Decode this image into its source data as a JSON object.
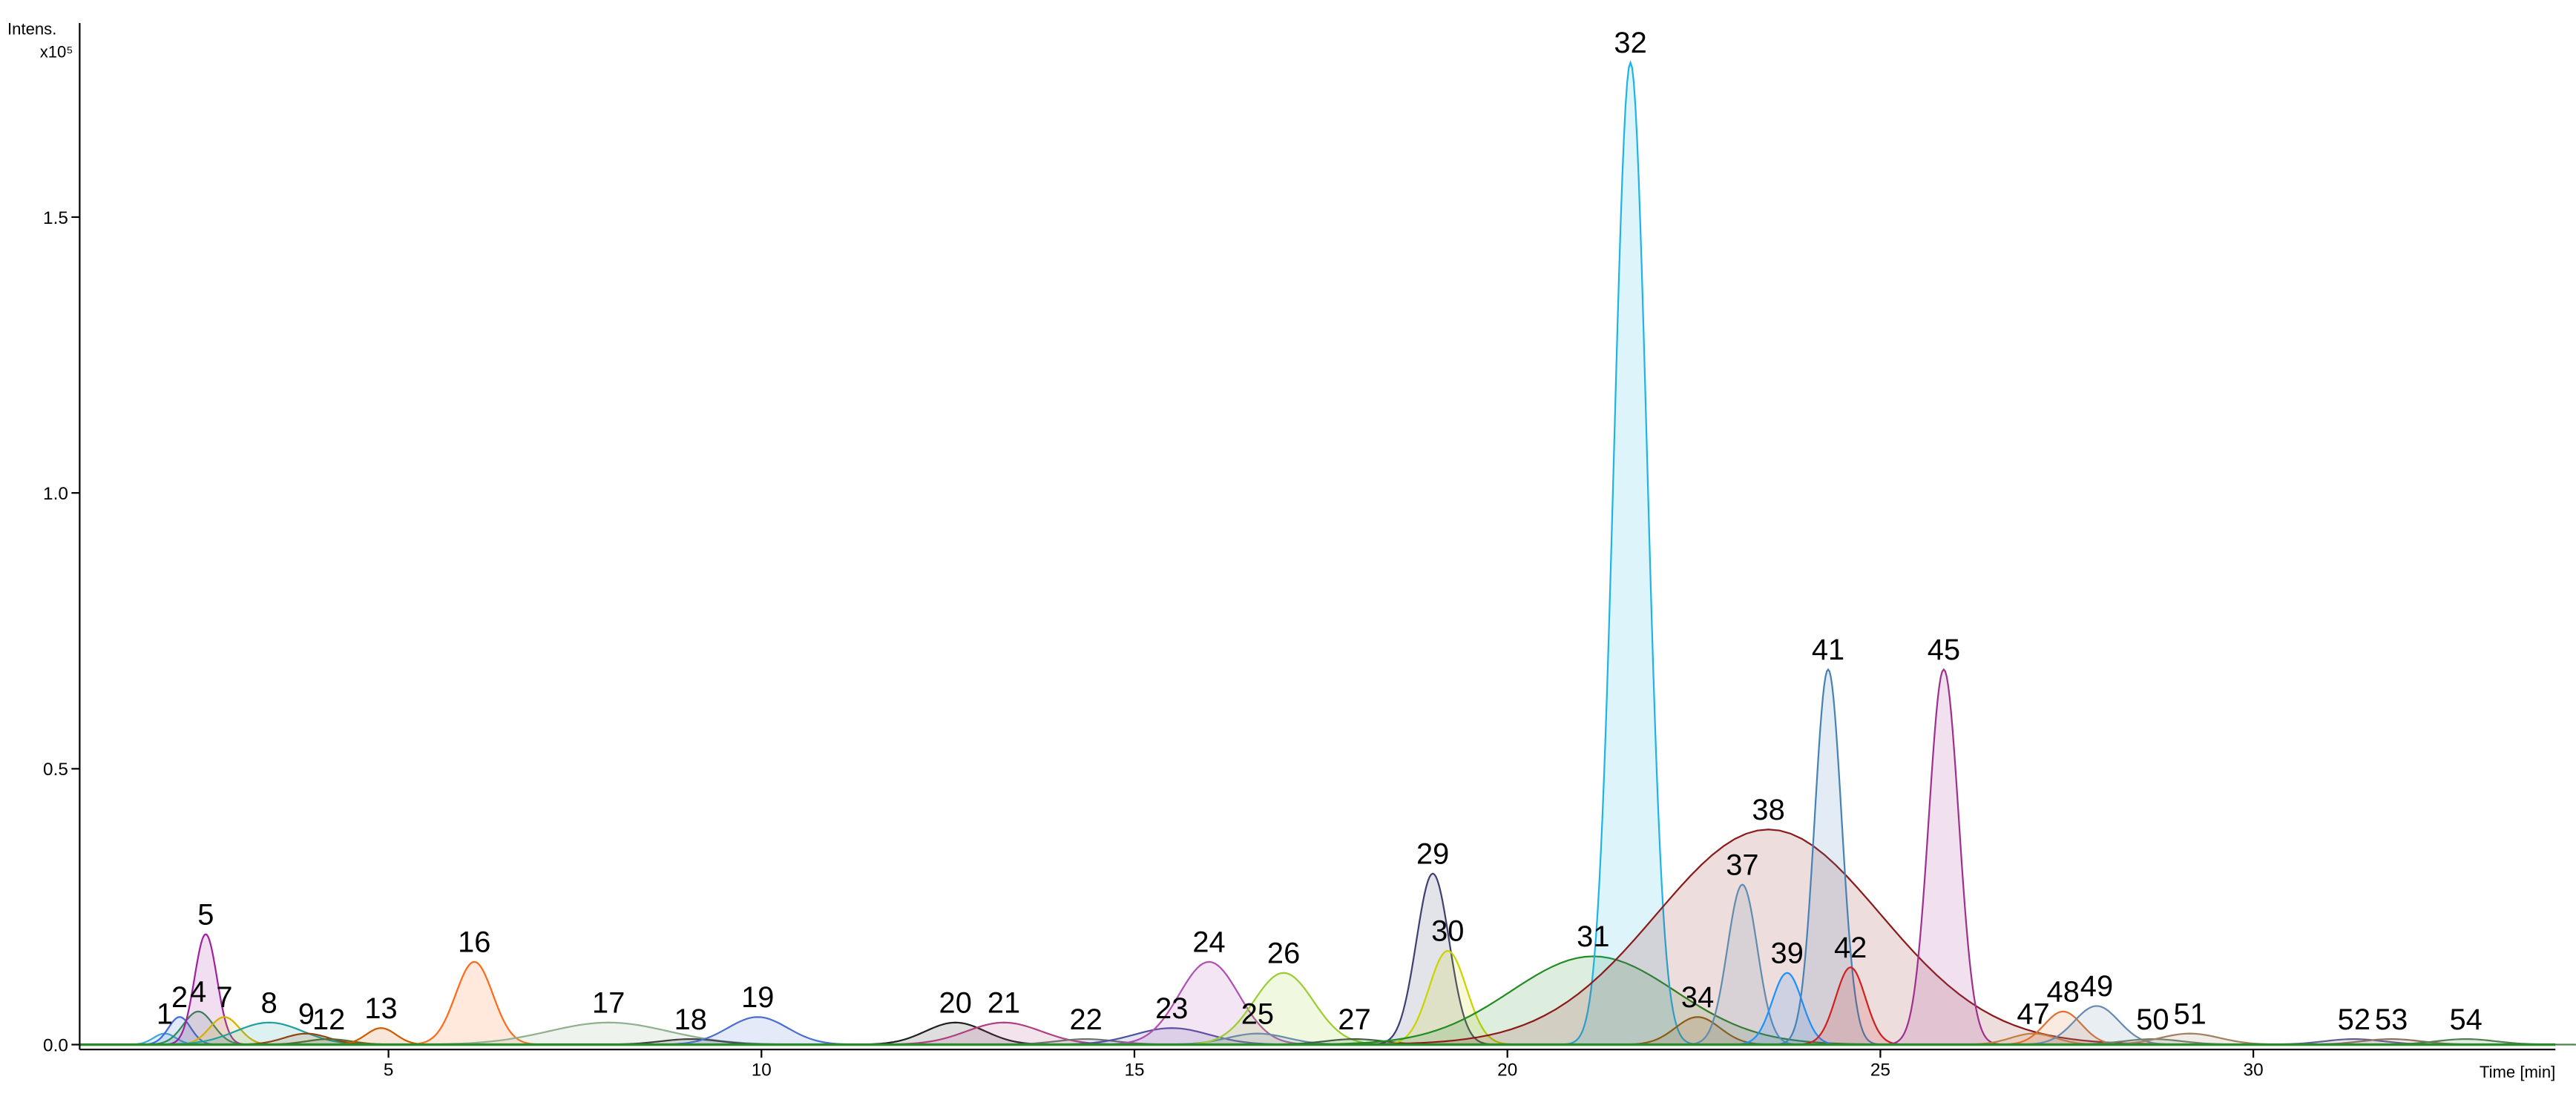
{
  "chart_data": {
    "type": "chromatogram",
    "y_label": "Intens.",
    "y_unit": "x10⁵",
    "x_label": "Time [min]",
    "xlim": [
      0.86,
      34.05
    ],
    "ylim": [
      0,
      1.84
    ],
    "xticks": [
      5,
      10,
      15,
      20,
      25,
      30
    ],
    "yticks": [
      {
        "value": 0,
        "label": "0.0"
      },
      0.5,
      {
        "value": 1,
        "label": "1.0"
      },
      1.5
    ],
    "peaks": [
      {
        "label": "1",
        "x": 2.0,
        "y": 0.02,
        "width": 0.15,
        "color": "#3fa7d6"
      },
      {
        "label": "2",
        "x": 2.2,
        "y": 0.05,
        "width": 0.15,
        "color": "#4169e1"
      },
      {
        "label": "4",
        "x": 2.45,
        "y": 0.06,
        "width": 0.2,
        "color": "#2e8b57"
      },
      {
        "label": "5",
        "x": 2.55,
        "y": 0.2,
        "width": 0.15,
        "color": "#a020a0"
      },
      {
        "label": "7",
        "x": 2.8,
        "y": 0.05,
        "width": 0.2,
        "color": "#d4b000"
      },
      {
        "label": "8",
        "x": 3.4,
        "y": 0.04,
        "width": 0.45,
        "color": "#20a0a0"
      },
      {
        "label": "9",
        "x": 3.9,
        "y": 0.02,
        "width": 0.3,
        "color": "#8b4513"
      },
      {
        "label": "12",
        "x": 4.2,
        "y": 0.01,
        "width": 0.3,
        "color": "#556b2f"
      },
      {
        "label": "13",
        "x": 4.9,
        "y": 0.03,
        "width": 0.2,
        "color": "#cd5c00"
      },
      {
        "label": "16",
        "x": 6.15,
        "y": 0.15,
        "width": 0.25,
        "color": "#ff6a1a"
      },
      {
        "label": "17",
        "x": 7.95,
        "y": 0.04,
        "width": 0.8,
        "color": "#90b090"
      },
      {
        "label": "18",
        "x": 9.05,
        "y": 0.01,
        "width": 0.4,
        "color": "#404040"
      },
      {
        "label": "19",
        "x": 9.95,
        "y": 0.05,
        "width": 0.4,
        "color": "#4a6fd0"
      },
      {
        "label": "20",
        "x": 12.6,
        "y": 0.04,
        "width": 0.4,
        "color": "#202020"
      },
      {
        "label": "21",
        "x": 13.25,
        "y": 0.04,
        "width": 0.5,
        "color": "#b04080"
      },
      {
        "label": "22",
        "x": 14.35,
        "y": 0.01,
        "width": 0.4,
        "color": "#707070"
      },
      {
        "label": "23",
        "x": 15.5,
        "y": 0.03,
        "width": 0.5,
        "color": "#5050a0"
      },
      {
        "label": "24",
        "x": 16.0,
        "y": 0.15,
        "width": 0.4,
        "color": "#b050b0"
      },
      {
        "label": "25",
        "x": 16.65,
        "y": 0.02,
        "width": 0.4,
        "color": "#6080c0"
      },
      {
        "label": "26",
        "x": 17.0,
        "y": 0.13,
        "width": 0.4,
        "color": "#9acd32"
      },
      {
        "label": "27",
        "x": 17.95,
        "y": 0.01,
        "width": 0.4,
        "color": "#406040"
      },
      {
        "label": "29",
        "x": 19.0,
        "y": 0.31,
        "width": 0.22,
        "color": "#404070"
      },
      {
        "label": "30",
        "x": 19.2,
        "y": 0.17,
        "width": 0.25,
        "color": "#c8d400"
      },
      {
        "label": "31",
        "x": 21.15,
        "y": 0.16,
        "width": 1.1,
        "color": "#228b22"
      },
      {
        "label": "32",
        "x": 21.65,
        "y": 1.78,
        "width": 0.22,
        "color": "#1eb4e6"
      },
      {
        "label": "34",
        "x": 22.55,
        "y": 0.05,
        "width": 0.3,
        "color": "#8b6914"
      },
      {
        "label": "37",
        "x": 23.15,
        "y": 0.29,
        "width": 0.2,
        "color": "#5aa0c8"
      },
      {
        "label": "38",
        "x": 23.5,
        "y": 0.39,
        "width": 1.5,
        "color": "#8b1a1a"
      },
      {
        "label": "39",
        "x": 23.75,
        "y": 0.13,
        "width": 0.2,
        "color": "#1e90ff"
      },
      {
        "label": "41",
        "x": 24.3,
        "y": 0.68,
        "width": 0.18,
        "color": "#4682b4"
      },
      {
        "label": "42",
        "x": 24.6,
        "y": 0.14,
        "width": 0.2,
        "color": "#d02020"
      },
      {
        "label": "45",
        "x": 25.85,
        "y": 0.68,
        "width": 0.2,
        "color": "#a03090"
      },
      {
        "label": "47",
        "x": 27.05,
        "y": 0.02,
        "width": 0.3,
        "color": "#c08040"
      },
      {
        "label": "48",
        "x": 27.45,
        "y": 0.06,
        "width": 0.25,
        "color": "#e07030"
      },
      {
        "label": "49",
        "x": 27.9,
        "y": 0.07,
        "width": 0.3,
        "color": "#6a8ab0"
      },
      {
        "label": "50",
        "x": 28.65,
        "y": 0.01,
        "width": 0.4,
        "color": "#708070"
      },
      {
        "label": "51",
        "x": 29.15,
        "y": 0.02,
        "width": 0.4,
        "color": "#a08060"
      },
      {
        "label": "52",
        "x": 31.35,
        "y": 0.01,
        "width": 0.4,
        "color": "#606090"
      },
      {
        "label": "53",
        "x": 31.85,
        "y": 0.01,
        "width": 0.4,
        "color": "#907060"
      },
      {
        "label": "54",
        "x": 32.85,
        "y": 0.01,
        "width": 0.4,
        "color": "#508050"
      }
    ]
  }
}
